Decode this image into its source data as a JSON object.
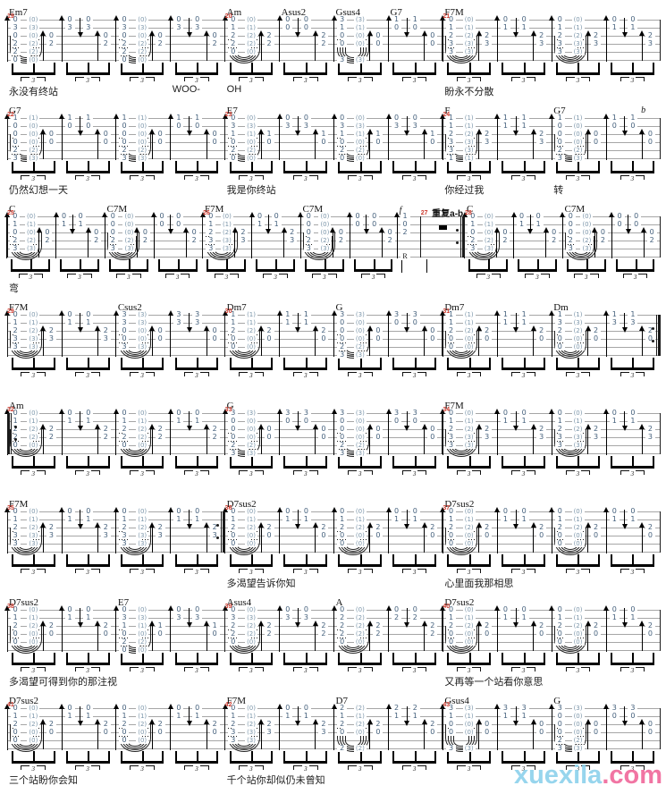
{
  "watermark": {
    "main": "xuexila",
    "suffix": ".com",
    "main_color": "#8fd2ec",
    "suffix_color": "#f06a9c"
  },
  "labels": {
    "tuplet": "3",
    "r_label": "R"
  },
  "colors": {
    "measure_number": "#cc3b2f",
    "staff_line": "#a6a6a6",
    "fret_digit": "#44607c",
    "arrow": "#000000"
  },
  "chords": {
    "Em7": [
      "0",
      "3",
      "0",
      "2",
      "2",
      "0"
    ],
    "Am": [
      "0",
      "1",
      "2",
      "2",
      "0",
      ""
    ],
    "Asus2": [
      "0",
      "0",
      "2",
      "2",
      "0",
      ""
    ],
    "Gsus4": [
      "3",
      "1",
      "0",
      "0",
      "",
      "3"
    ],
    "G7": [
      "1",
      "0",
      "0",
      "0",
      "2",
      "3"
    ],
    "F7M": [
      "0",
      "1",
      "2",
      "3",
      "3",
      ""
    ],
    "E7": [
      "0",
      "3",
      "1",
      "0",
      "2",
      "0"
    ],
    "F": [
      "1",
      "1",
      "2",
      "3",
      "3",
      "1"
    ],
    "C": [
      "0",
      "1",
      "0",
      "2",
      "3",
      ""
    ],
    "C7M": [
      "0",
      "0",
      "0",
      "2",
      "3",
      ""
    ],
    "Csus2": [
      "3",
      "3",
      "0",
      "0",
      "3",
      ""
    ],
    "Dm7": [
      "1",
      "1",
      "2",
      "0",
      "0",
      ""
    ],
    "G": [
      "3",
      "0",
      "0",
      "0",
      "2",
      "3"
    ],
    "Dm": [
      "1",
      "3",
      "2",
      "0",
      "0",
      ""
    ],
    "A": [
      "0",
      "2",
      "2",
      "2",
      "0",
      ""
    ],
    "Asus4": [
      "0",
      "3",
      "2",
      "2",
      "0",
      ""
    ],
    "D7sus2": [
      "0",
      "1",
      "2",
      "0",
      "0",
      ""
    ],
    "D7": [
      "2",
      "1",
      "2",
      "0",
      "",
      "2"
    ]
  },
  "systems": [
    {
      "measures": [
        {
          "num": "19",
          "groups": [
            {
              "c": "Em7",
              "t": "s",
              "ly": "永没有终站"
            },
            {
              "t": "ud"
            },
            {
              "t": "s"
            },
            {
              "t": "ud",
              "ly": "WOO-"
            }
          ]
        },
        {
          "num": "20",
          "groups": [
            {
              "c": "Am",
              "t": "s",
              "ly": "OH"
            },
            {
              "c": "Asus2",
              "t": "ud"
            },
            {
              "c": "Gsus4",
              "t": "s"
            },
            {
              "c": "G7",
              "t": "ud"
            }
          ]
        },
        {
          "num": "21",
          "groups": [
            {
              "c": "F7M",
              "t": "s",
              "ly": "盼永不分散"
            },
            {
              "t": "ud"
            },
            {
              "t": "s"
            },
            {
              "t": "ud"
            }
          ]
        }
      ]
    },
    {
      "anns": [
        {
          "t": "b",
          "x": "97%",
          "y": 0
        }
      ],
      "measures": [
        {
          "num": "22",
          "groups": [
            {
              "c": "G7",
              "t": "s",
              "ly": "仍然幻想一天"
            },
            {
              "t": "ud"
            },
            {
              "t": "s"
            },
            {
              "t": "ud"
            }
          ]
        },
        {
          "num": "23",
          "groups": [
            {
              "c": "E7",
              "t": "s",
              "ly": "我是你终站"
            },
            {
              "t": "ud"
            },
            {
              "t": "s"
            },
            {
              "t": "ud"
            }
          ]
        },
        {
          "num": "24",
          "groups": [
            {
              "c": "F",
              "t": "s",
              "ly": "你经过我"
            },
            {
              "t": "ud"
            },
            {
              "c": "G7",
              "t": "s",
              "ly": "转"
            },
            {
              "t": "ud"
            }
          ]
        }
      ]
    },
    {
      "anns": [
        {
          "t": "f",
          "x": "60%",
          "y": 2
        },
        {
          "t": "重复a-b",
          "x": "65%",
          "y": 2,
          "cjk": true
        }
      ],
      "measures": [
        {
          "num": "25",
          "groups": [
            {
              "c": "C",
              "t": "s",
              "ly": "弯"
            },
            {
              "t": "ud"
            },
            {
              "c": "C7M",
              "t": "s"
            },
            {
              "t": "ud"
            }
          ]
        },
        {
          "num": "26",
          "groups": [
            {
              "c": "F7M",
              "t": "s"
            },
            {
              "t": "ud"
            },
            {
              "c": "C7M",
              "t": "s"
            },
            {
              "t": "ud"
            },
            {
              "t": "rcol"
            }
          ]
        },
        {
          "num": "27",
          "bar": "repeat-end",
          "groups": [
            {
              "t": "rest"
            }
          ]
        },
        {
          "num": "28",
          "groups": [
            {
              "c": "C",
              "t": "s"
            },
            {
              "t": "ud"
            },
            {
              "c": "C7M",
              "t": "s"
            },
            {
              "t": "ud"
            }
          ]
        }
      ]
    },
    {
      "measures": [
        {
          "num": "29",
          "groups": [
            {
              "c": "F7M",
              "t": "s"
            },
            {
              "t": "ud"
            },
            {
              "c": "Csus2",
              "t": "s"
            },
            {
              "t": "ud"
            }
          ]
        },
        {
          "num": "30",
          "groups": [
            {
              "c": "Dm7",
              "t": "s"
            },
            {
              "t": "ud"
            },
            {
              "c": "G",
              "t": "s"
            },
            {
              "t": "ud"
            }
          ]
        },
        {
          "num": "31",
          "bar": "repeat-end",
          "groups": [
            {
              "c": "Dm7",
              "t": "s"
            },
            {
              "t": "ud"
            },
            {
              "c": "Dm",
              "t": "s"
            },
            {
              "t": "ud"
            }
          ]
        }
      ]
    },
    {
      "left_bar": "repeat-start",
      "measures": [
        {
          "num": "32",
          "groups": [
            {
              "c": "Am",
              "t": "s"
            },
            {
              "t": "ud"
            },
            {
              "t": "s"
            },
            {
              "t": "ud"
            }
          ]
        },
        {
          "num": "33",
          "groups": [
            {
              "c": "G",
              "t": "s"
            },
            {
              "t": "ud"
            },
            {
              "t": "s"
            },
            {
              "t": "ud"
            }
          ]
        },
        {
          "num": "34",
          "groups": [
            {
              "c": "F7M",
              "t": "s"
            },
            {
              "t": "ud"
            },
            {
              "t": "s"
            },
            {
              "t": "ud"
            }
          ]
        }
      ]
    },
    {
      "measures": [
        {
          "num": "35",
          "bar": "repeat-end",
          "groups": [
            {
              "c": "F7M",
              "t": "s"
            },
            {
              "t": "ud"
            },
            {
              "t": "s"
            },
            {
              "t": "ud"
            }
          ]
        },
        {
          "num": "36",
          "groups": [
            {
              "c": "D7sus2",
              "t": "s",
              "ly": "多渴望告诉你知"
            },
            {
              "t": "ud"
            },
            {
              "t": "s"
            },
            {
              "t": "ud"
            }
          ]
        },
        {
          "num": "37",
          "groups": [
            {
              "c": "D7sus2",
              "t": "s",
              "ly": "心里面我那相思"
            },
            {
              "t": "ud"
            },
            {
              "t": "s"
            },
            {
              "t": "ud"
            }
          ]
        }
      ]
    },
    {
      "measures": [
        {
          "num": "38",
          "groups": [
            {
              "c": "D7sus2",
              "t": "s",
              "ly": "多渴望可得到你的那注视"
            },
            {
              "t": "ud"
            },
            {
              "c": "E7",
              "t": "s"
            },
            {
              "t": "ud"
            }
          ]
        },
        {
          "num": "39",
          "groups": [
            {
              "c": "Asus4",
              "t": "s"
            },
            {
              "t": "ud"
            },
            {
              "c": "A",
              "t": "s"
            },
            {
              "t": "ud"
            }
          ]
        },
        {
          "num": "40",
          "groups": [
            {
              "c": "D7sus2",
              "t": "s",
              "ly": "又再等一个站看你意思"
            },
            {
              "t": "ud"
            },
            {
              "t": "s"
            },
            {
              "t": "ud"
            }
          ]
        }
      ]
    },
    {
      "measures": [
        {
          "num": "41",
          "groups": [
            {
              "c": "D7sus2",
              "t": "s",
              "ly": "三个站盼你会知"
            },
            {
              "t": "ud"
            },
            {
              "t": "s"
            },
            {
              "t": "ud"
            }
          ]
        },
        {
          "num": "42",
          "groups": [
            {
              "c": "F7M",
              "t": "s",
              "ly": "千个站你却似仍未曾知"
            },
            {
              "t": "ud"
            },
            {
              "c": "D7",
              "t": "s"
            },
            {
              "t": "ud"
            }
          ]
        },
        {
          "num": "43",
          "groups": [
            {
              "c": "Gsus4",
              "t": "s"
            },
            {
              "t": "ud"
            },
            {
              "c": "G",
              "t": "s"
            },
            {
              "t": "ud"
            }
          ]
        }
      ]
    }
  ]
}
